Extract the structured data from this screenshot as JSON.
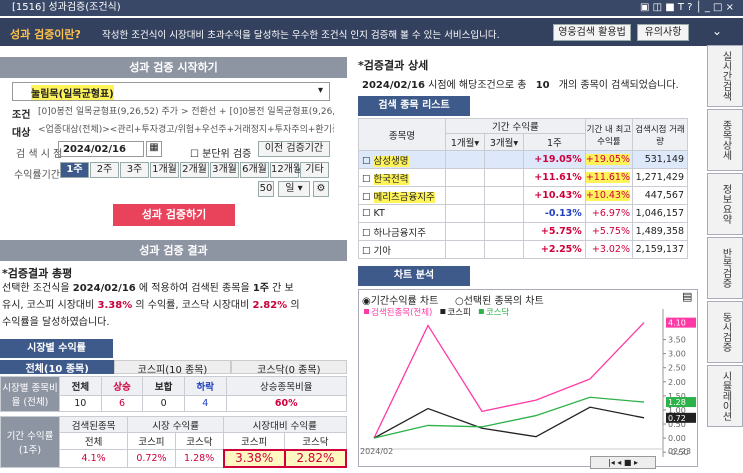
{
  "window": {
    "title": "[1516] 성과검증(조건식)"
  },
  "banner": {
    "heading": "성과 검증이란?",
    "text": "작성한 조건식이 시장대비 초과수익을 달성하는 우수한 조건식 인지 검증해 볼 수 있는 서비스입니다.",
    "buttons": [
      "영웅검색 활용법",
      "유의사항"
    ]
  },
  "start": {
    "title": "성과 검증 시작하기",
    "condition_name": "눌림목(일목균형표)",
    "condition_label": "조건",
    "condition_text": "[0]0봉전 일목균형표(9,26,52) 주가 > 전환선 + [0]0봉전 일목균형표(9,26,52) 주가",
    "target_label": "대상",
    "target_text": "<업종대상(전체)><관리+투자경고/위험+우선주+거래정지+투자주의+환기종목+정",
    "date_label": "검 색 시 점",
    "date": "2024/02/16",
    "minute_check": "분단위 검증",
    "prev_button": "이전 검증기간",
    "period_label": "수익률기간",
    "periods": [
      "1주",
      "2주",
      "3주",
      "1개월",
      "2개월",
      "3개월",
      "6개월",
      "12개월",
      "기타"
    ],
    "custom_days": "50",
    "custom_unit": "일",
    "run_button": "성과 검증하기"
  },
  "result": {
    "title": "성과 검증 결과",
    "summary_title": "*검증결과 총평",
    "summary": [
      "선택한 조건식을 ",
      "2024/02/16",
      " 에 적용하여 검색된 종목을 ",
      "1주",
      " 간 보유시, 코스피 시장대비 ",
      "3.38%",
      " 의 수익률, 코스닥 시장대비 ",
      "2.82%",
      " 의 수익률을 달성하였습니다."
    ],
    "tab": "시장별 수익률",
    "subtabs": [
      "전체(10 종목)",
      "코스피(10 종목)",
      "코스닥(0 종목)"
    ],
    "ratio": {
      "row_label": "시장별 종목비율 (전체)",
      "headers": [
        "전체",
        "상승",
        "보합",
        "하락",
        "상승종목비율"
      ],
      "values": [
        "10",
        "6",
        "0",
        "4",
        "60%"
      ]
    },
    "returns": {
      "row_label": "기간 수익률 (1주)",
      "groups": [
        "검색된종목",
        "시장 수익률",
        "시장대비 수익률"
      ],
      "subheaders": [
        "전체",
        "코스피",
        "코스닥",
        "코스피",
        "코스닥"
      ],
      "values": [
        "4.1%",
        "0.72%",
        "1.28%",
        "3.38%",
        "2.82%"
      ]
    }
  },
  "detail": {
    "title": "*검증결과 상세",
    "message": [
      "2024/02/16",
      " 시점에 해당조건으로 총 ",
      "10",
      " 개의 종목이 검색되었습니다."
    ],
    "list_tab": "검색 종목 리스트",
    "headers": {
      "name": "종목명",
      "period": "기간 수익률",
      "sub": [
        "1개월",
        "3개월",
        "1주"
      ],
      "max": "기간 내 최고수익률",
      "volume": "검색시점 거래량"
    },
    "rows": [
      {
        "name": "삼성생명",
        "return": "+19.05%",
        "max_return": "+19.05%",
        "volume": "531,149",
        "highlight": true
      },
      {
        "name": "한국전력",
        "return": "+11.61%",
        "max_return": "+11.61%",
        "volume": "1,271,429",
        "highlight": true
      },
      {
        "name": "메리츠금융지주",
        "return": "+10.43%",
        "max_return": "+10.43%",
        "volume": "447,567",
        "highlight": true
      },
      {
        "name": "KT",
        "return": "-0.13%",
        "max_return": "+6.97%",
        "volume": "1,046,157",
        "highlight": false
      },
      {
        "name": "하나금융지주",
        "return": "+5.75%",
        "max_return": "+5.75%",
        "volume": "1,489,358",
        "highlight": false
      },
      {
        "name": "기아",
        "return": "+2.25%",
        "max_return": "+3.02%",
        "volume": "2,159,137",
        "highlight": false
      }
    ]
  },
  "chart_analysis": {
    "tab": "차트 분석",
    "radios": [
      "기간수익률 차트",
      "선택된 종목의 차트"
    ],
    "chart": {
      "type": "line",
      "x": [
        "2024/02",
        null,
        null,
        null,
        null,
        "02/23"
      ],
      "series": [
        {
          "name": "검색된종목(전체)",
          "color": "#ff3aa6",
          "values": [
            0,
            4.0,
            0.95,
            1.35,
            2.1,
            4.1
          ],
          "value_labels": [
            null,
            null,
            null,
            null,
            null,
            "4.10"
          ]
        },
        {
          "name": "코스피",
          "color": "#222222",
          "values": [
            0,
            1.05,
            0.35,
            0.05,
            1.1,
            0.72
          ],
          "value_labels": [
            null,
            null,
            null,
            null,
            null,
            "0.72"
          ]
        },
        {
          "name": "코스닥",
          "color": "#2db24a",
          "values": [
            0,
            0.45,
            0.4,
            0.8,
            1.45,
            1.28
          ],
          "value_labels": [
            null,
            null,
            null,
            null,
            null,
            "1.28"
          ]
        }
      ],
      "ylim": [
        -0.6,
        4.3
      ],
      "yticks": [
        {
          "value": 3.5,
          "label": "3.50"
        },
        {
          "value": 3,
          "label": "3.00"
        },
        {
          "value": 2.5,
          "label": "2.50"
        },
        {
          "value": 2,
          "label": "2.00"
        },
        {
          "value": 1.5,
          "label": "1.50"
        },
        {
          "value": 1,
          "label": "1.00"
        },
        {
          "value": 0.5,
          "label": "0.50"
        },
        {
          "value": 0,
          "label": "0.00"
        },
        {
          "value": -0.5,
          "label": "-0.50"
        }
      ]
    }
  },
  "side_tabs": [
    "실시간검색",
    "종목상세",
    "정보요약",
    "반복검증",
    "동시검증",
    "시뮬레이션"
  ]
}
